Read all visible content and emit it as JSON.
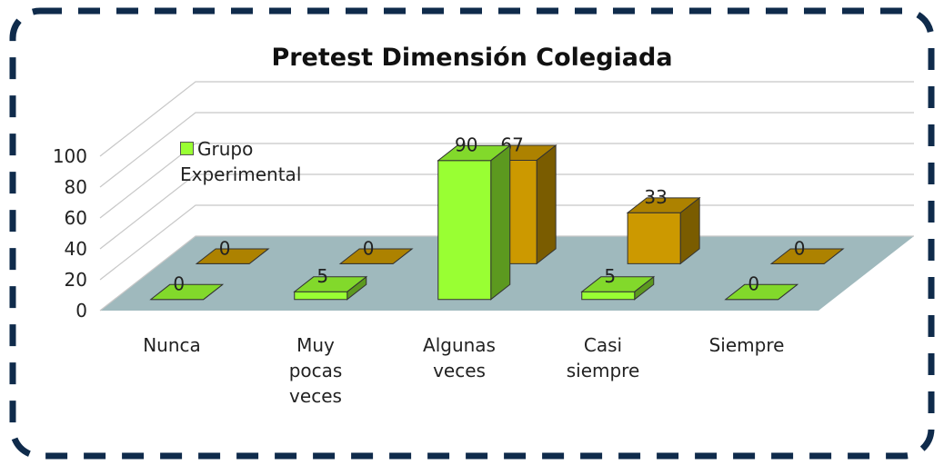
{
  "chart_data": {
    "type": "bar3d",
    "title": "Pretest Dimensión Colegiada",
    "categories": [
      "Nunca",
      "Muy pocas veces",
      "Algunas veces",
      "Casi siempre",
      "Siempre"
    ],
    "series": [
      {
        "name": "Grupo Experimental",
        "color": "#99ff33",
        "values": [
          0,
          5,
          90,
          5,
          0
        ]
      },
      {
        "color": "#cc9900",
        "values": [
          0,
          0,
          67,
          33,
          0
        ]
      }
    ],
    "ylim": [
      0,
      100
    ],
    "yticks": [
      0,
      20,
      40,
      60,
      80,
      100
    ],
    "grid": true,
    "legend": "top-left"
  }
}
